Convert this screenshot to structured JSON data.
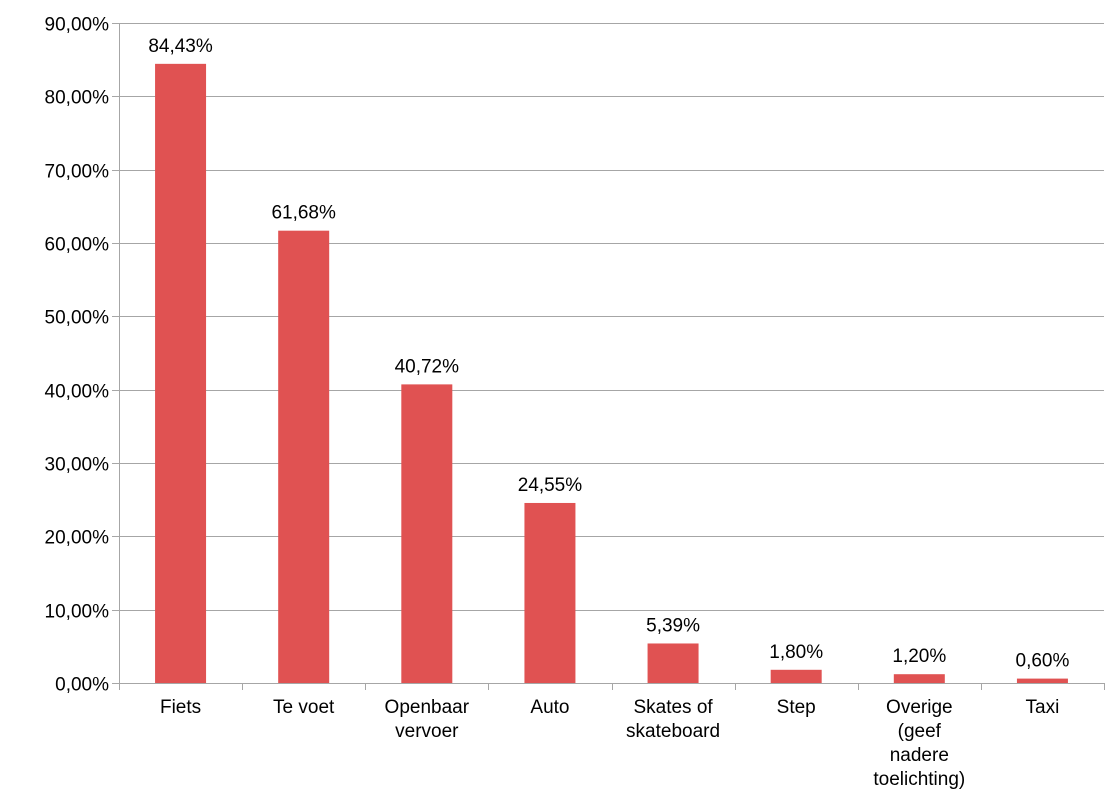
{
  "chart_data": {
    "type": "bar",
    "categories": [
      [
        "Fiets"
      ],
      [
        "Te voet"
      ],
      [
        "Openbaar",
        "vervoer"
      ],
      [
        "Auto"
      ],
      [
        "Skates of",
        "skateboard"
      ],
      [
        "Step"
      ],
      [
        "Overige",
        "(geef",
        "nadere",
        "toelichting)"
      ],
      [
        "Taxi"
      ]
    ],
    "values": [
      84.43,
      61.68,
      40.72,
      24.55,
      5.39,
      1.8,
      1.2,
      0.6
    ],
    "data_labels": [
      "84,43%",
      "61,68%",
      "40,72%",
      "24,55%",
      "5,39%",
      "1,80%",
      "1,20%",
      "0,60%"
    ],
    "y_ticks": [
      {
        "value": 0,
        "label": "0,00%"
      },
      {
        "value": 10,
        "label": "10,00%"
      },
      {
        "value": 20,
        "label": "20,00%"
      },
      {
        "value": 30,
        "label": "30,00%"
      },
      {
        "value": 40,
        "label": "40,00%"
      },
      {
        "value": 50,
        "label": "50,00%"
      },
      {
        "value": 60,
        "label": "60,00%"
      },
      {
        "value": 70,
        "label": "70,00%"
      },
      {
        "value": 80,
        "label": "80,00%"
      },
      {
        "value": 90,
        "label": "90,00%"
      }
    ],
    "ylim": [
      0,
      90
    ],
    "grid": true,
    "legend": "none",
    "bar_color": "#e05252",
    "gridline_color": "#a6a6a6"
  }
}
